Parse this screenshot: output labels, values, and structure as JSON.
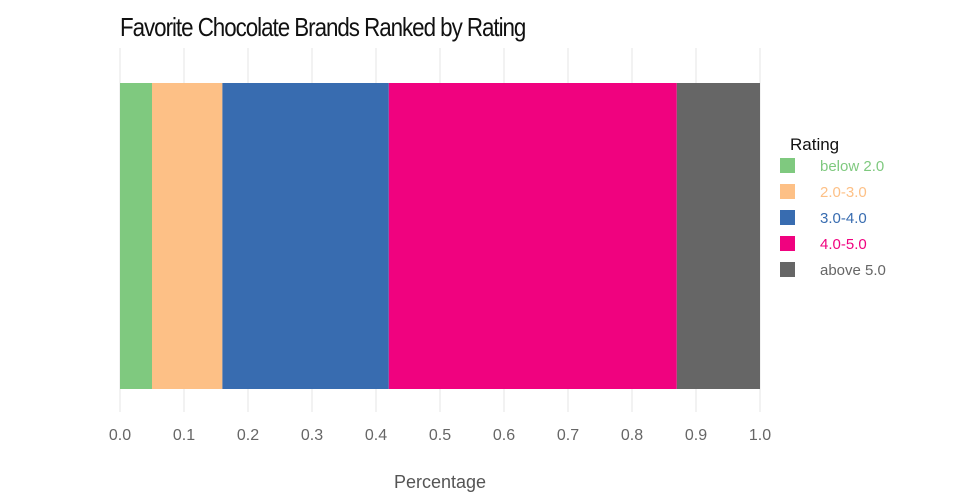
{
  "chart_data": {
    "type": "bar",
    "orientation": "horizontal",
    "stacked": true,
    "title": "Favorite Chocolate Brands Ranked by Rating",
    "xlabel": "Percentage",
    "ylabel": "",
    "xlim": [
      0.0,
      1.0
    ],
    "xticks": [
      "0.0",
      "0.1",
      "0.2",
      "0.3",
      "0.4",
      "0.5",
      "0.6",
      "0.7",
      "0.8",
      "0.9",
      "1.0"
    ],
    "grid": true,
    "legend": {
      "title": "Rating",
      "placement": "right"
    },
    "series": [
      {
        "name": "below 2.0",
        "value": 0.05,
        "color": "#7fc97f"
      },
      {
        "name": "2.0-3.0",
        "value": 0.11,
        "color": "#fdc086"
      },
      {
        "name": "3.0-4.0",
        "value": 0.26,
        "color": "#386cb0"
      },
      {
        "name": "4.0-5.0",
        "value": 0.45,
        "color": "#f0027f"
      },
      {
        "name": "above 5.0",
        "value": 0.13,
        "color": "#666666"
      }
    ]
  }
}
